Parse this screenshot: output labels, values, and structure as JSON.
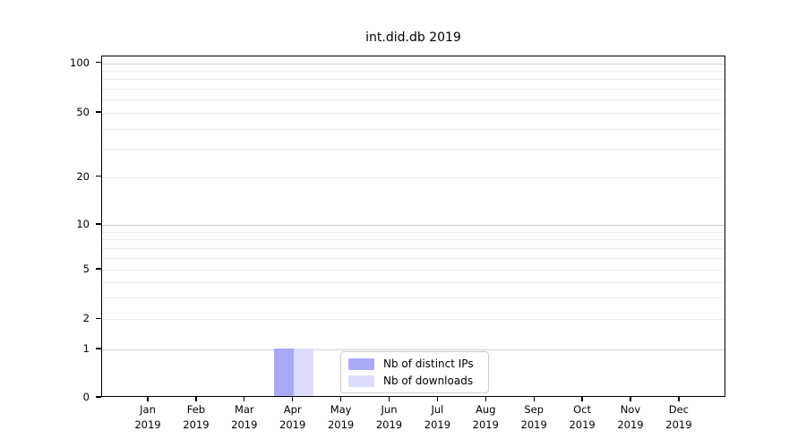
{
  "chart_data": {
    "type": "bar",
    "title": "int.did.db 2019",
    "categories": [
      "Jan",
      "Feb",
      "Mar",
      "Apr",
      "May",
      "Jun",
      "Jul",
      "Aug",
      "Sep",
      "Oct",
      "Nov",
      "Dec"
    ],
    "category_year": "2019",
    "series": [
      {
        "name": "Nb of distinct IPs",
        "color": "#a9a9f7",
        "values": [
          0,
          0,
          0,
          1,
          0,
          0,
          0,
          0,
          0,
          0,
          0,
          0
        ]
      },
      {
        "name": "Nb of downloads",
        "color": "#dcddfa",
        "values": [
          0,
          0,
          0,
          1,
          0,
          0,
          0,
          0,
          0,
          0,
          0,
          0
        ]
      }
    ],
    "xlabel": "",
    "ylabel": "",
    "yticks": [
      0,
      1,
      2,
      5,
      10,
      20,
      50,
      100
    ],
    "minor_grid_values": [
      2,
      3,
      4,
      5,
      6,
      7,
      8,
      9,
      20,
      30,
      40,
      50,
      60,
      70,
      80,
      90
    ],
    "major_grid_values": [
      1,
      10,
      100
    ],
    "ylim": [
      0,
      110
    ],
    "yscale": "log-like with linear zero region",
    "grid": "horizontal major+minor, no vertical",
    "legend_position": "lower center",
    "colors": {
      "bar_distinct_ips": "#a9a9f7",
      "bar_downloads": "#dcddfa",
      "major_grid": "#cfcfcf",
      "minor_grid": "#ececec",
      "axis": "#000000",
      "text": "#000000",
      "background": "#ffffff"
    }
  }
}
